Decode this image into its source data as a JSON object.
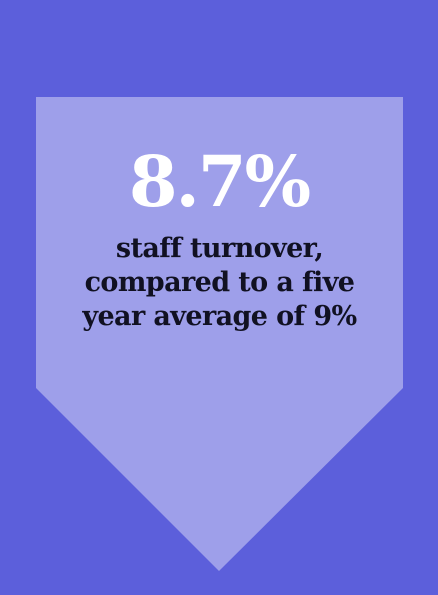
{
  "colors": {
    "background": "#5c5fdb",
    "shape": "#9e9fea",
    "stat_text": "#ffffff",
    "caption_text": "#111122"
  },
  "stat": {
    "value": "8.7%"
  },
  "caption": {
    "lines": [
      "staff turnover,",
      "compared to a five",
      "year average of 9%"
    ]
  },
  "shape": {
    "type": "down-arrow-pentagon-icon"
  }
}
